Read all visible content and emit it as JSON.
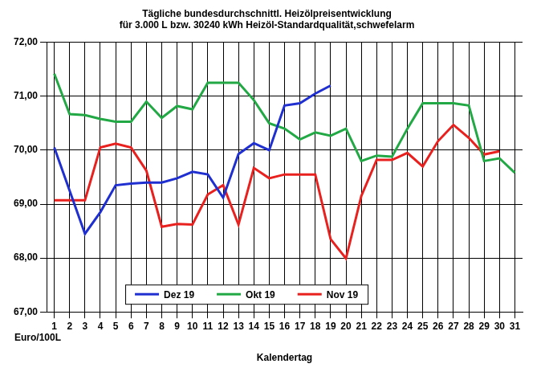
{
  "chart_data": {
    "type": "line",
    "title": [
      "Tägliche bundesdurchschnittl. Heizölpreisentwicklung",
      "für 3.000 L bzw. 30240 kWh Heizöl-Standardqualität,schwefelarm"
    ],
    "x_label": "Kalendertag",
    "y_label": "Euro/100L",
    "categories": [
      "1",
      "2",
      "3",
      "4",
      "5",
      "6",
      "7",
      "8",
      "9",
      "10",
      "11",
      "12",
      "13",
      "14",
      "15",
      "16",
      "17",
      "18",
      "19",
      "20",
      "21",
      "22",
      "23",
      "24",
      "25",
      "26",
      "27",
      "28",
      "29",
      "30",
      "31"
    ],
    "series": [
      {
        "name": "Dez 19",
        "color": "#1f2fd0",
        "values": [
          70.05,
          69.25,
          68.45,
          68.85,
          69.35,
          69.38,
          69.4,
          69.4,
          69.48,
          69.6,
          69.55,
          69.12,
          69.93,
          70.13,
          70.0,
          70.83,
          70.87,
          71.05,
          71.2,
          null,
          null,
          null,
          null,
          null,
          null,
          null,
          null,
          null,
          null,
          null,
          null
        ]
      },
      {
        "name": "Okt 19",
        "color": "#22a844",
        "values": [
          71.42,
          70.67,
          70.65,
          70.58,
          70.53,
          70.53,
          70.9,
          70.6,
          70.82,
          70.76,
          71.25,
          71.25,
          71.25,
          70.93,
          70.5,
          70.4,
          70.2,
          70.33,
          70.27,
          70.4,
          69.8,
          69.9,
          69.88,
          70.4,
          70.87,
          70.87,
          70.87,
          70.83,
          69.8,
          69.85,
          69.58
        ]
      },
      {
        "name": "Nov 19",
        "color": "#e8201e",
        "values": [
          69.07,
          69.07,
          69.07,
          70.05,
          70.12,
          70.05,
          69.62,
          68.58,
          68.63,
          68.62,
          69.18,
          69.35,
          68.62,
          69.67,
          69.48,
          69.55,
          69.55,
          69.55,
          68.35,
          67.99,
          69.15,
          69.82,
          69.82,
          69.95,
          69.7,
          70.17,
          70.47,
          70.23,
          69.92,
          69.98,
          null
        ]
      }
    ],
    "ylim": [
      67,
      72
    ],
    "yticks": [
      {
        "value": 67,
        "label": "67,00"
      },
      {
        "value": 68,
        "label": "68,00"
      },
      {
        "value": 69,
        "label": "69,00"
      },
      {
        "value": 70,
        "label": "70,00"
      },
      {
        "value": 71,
        "label": "71,00"
      },
      {
        "value": 72,
        "label": "72,00"
      }
    ],
    "grid": true,
    "legend": "bottom"
  }
}
